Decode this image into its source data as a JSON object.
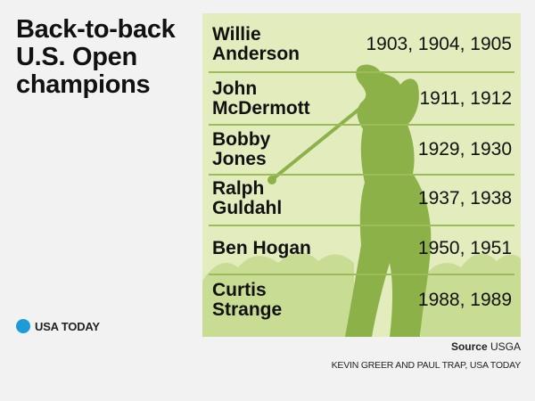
{
  "title": "Back-to-back U.S. Open champions",
  "brand": {
    "name": "USA TODAY",
    "dot_color": "#1d9bd8"
  },
  "panel": {
    "background_color": "#e2ecbd",
    "silhouette_color": "#8db149",
    "divider_color": "#9cbc5a"
  },
  "champions": [
    {
      "name_line1": "Willie",
      "name_line2": "Anderson",
      "years": "1903, 1904, 1905"
    },
    {
      "name_line1": "John",
      "name_line2": "McDermott",
      "years": "1911, 1912"
    },
    {
      "name_line1": "Bobby",
      "name_line2": "Jones",
      "years": "1929, 1930"
    },
    {
      "name_line1": "Ralph",
      "name_line2": "Guldahl",
      "years": "1937, 1938"
    },
    {
      "name_line1": "Ben Hogan",
      "name_line2": "",
      "years": "1950, 1951"
    },
    {
      "name_line1": "Curtis",
      "name_line2": "Strange",
      "years": "1988, 1989"
    }
  ],
  "source": {
    "label": "Source",
    "value": "USGA"
  },
  "credit": "KEVIN GREER AND PAUL TRAP, USA TODAY"
}
